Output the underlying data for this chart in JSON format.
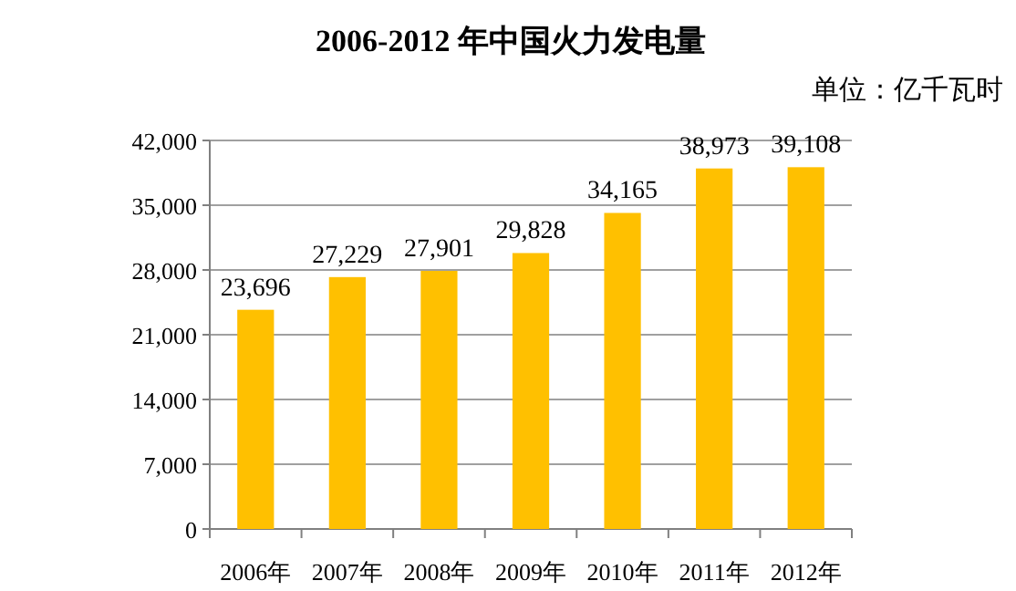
{
  "chart_data": {
    "type": "bar",
    "title": "2006-2012 年中国火力发电量",
    "annotations": [
      "单位：亿千瓦时"
    ],
    "categories": [
      "2006年",
      "2007年",
      "2008年",
      "2009年",
      "2010年",
      "2011年",
      "2012年"
    ],
    "values": [
      23696,
      27229,
      27901,
      29828,
      34165,
      38973,
      39108
    ],
    "value_labels": [
      "23,696",
      "27,229",
      "27,901",
      "29,828",
      "34,165",
      "38,973",
      "39,108"
    ],
    "color": "#ffc000",
    "ylim": [
      0,
      42000
    ],
    "yticks": [
      0,
      {
        "value": 7000,
        "label": "7,000"
      },
      {
        "value": 14000,
        "label": "14,000"
      },
      {
        "value": 21000,
        "label": "21,000"
      },
      {
        "value": 28000,
        "label": "28,000"
      },
      {
        "value": 35000,
        "label": "35,000"
      },
      {
        "value": 42000,
        "label": "42,000"
      }
    ],
    "grid": "y"
  }
}
